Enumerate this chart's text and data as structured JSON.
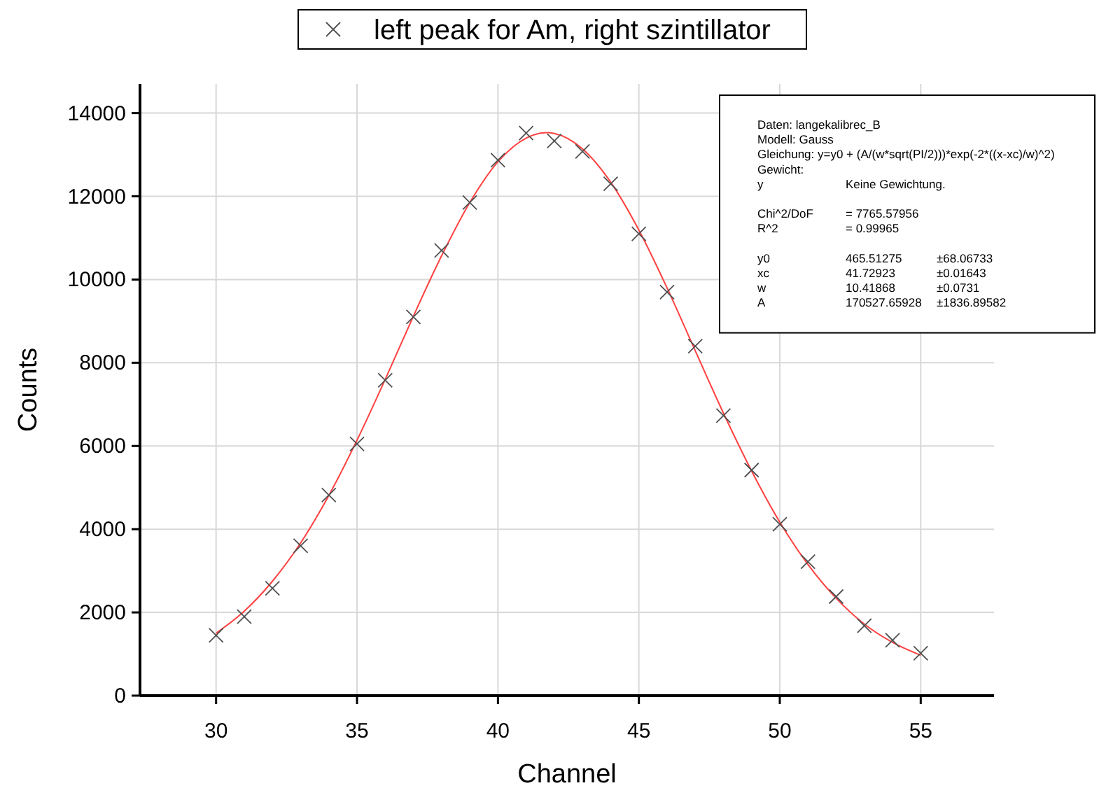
{
  "chart_data": {
    "type": "scatter",
    "xlabel": "Channel",
    "ylabel": "Counts",
    "xlim": [
      27.3,
      57.6
    ],
    "xticks": [
      30,
      35,
      40,
      45,
      50,
      55
    ],
    "ylim": [
      0,
      14700
    ],
    "yticks": [
      0,
      2000,
      4000,
      6000,
      8000,
      10000,
      12000,
      14000
    ],
    "grid": true,
    "legend": "top",
    "series": [
      {
        "name": "left peak for Am, right szintillator",
        "marker": "cross",
        "color": "#505050",
        "x": [
          30,
          31,
          32,
          33,
          34,
          35,
          36,
          37,
          38,
          39,
          40,
          41,
          42,
          43,
          44,
          45,
          46,
          47,
          48,
          49,
          50,
          51,
          52,
          53,
          54,
          55
        ],
        "values": [
          1450,
          1900,
          2580,
          3600,
          4820,
          6050,
          7580,
          9100,
          10700,
          11850,
          12870,
          13520,
          13330,
          13080,
          12300,
          11100,
          9700,
          8400,
          6730,
          5420,
          4120,
          3220,
          2380,
          1680,
          1330,
          1020
        ]
      },
      {
        "type": "line",
        "marker": "none",
        "color": "#ff4040",
        "x": [
          30,
          31,
          32,
          33,
          34,
          35,
          36,
          37,
          38,
          39,
          40,
          41,
          41.73,
          42,
          43,
          44,
          45,
          46,
          47,
          48,
          49,
          50,
          51,
          52,
          53,
          54,
          55
        ],
        "values": [
          1500,
          2030,
          2750,
          3670,
          4810,
          6140,
          7600,
          9120,
          10570,
          11850,
          12830,
          13400,
          13530,
          13510,
          13140,
          12340,
          11190,
          9800,
          8290,
          6790,
          5400,
          4170,
          3150,
          2340,
          1720,
          1280,
          970
        ]
      }
    ],
    "annotations": [
      "Daten: langekalibrec_B\nModell: Gauss\nGleichung: y=y0 + (A/(w*sqrt(PI/2)))*exp(-2*((x-xc)/w)^2)\nGewicht:\ny\tKeine Gewichtung.\n\nChi^2/DoF\t= 7765.57956\nR^2\t=  0.99965\n\ny0\t465.51275\t±68.06733\nxc\t41.72923\t±0.01643\nw\t10.41868\t±0.0731\nA\t170527.65928\t±1836.89582"
    ]
  }
}
